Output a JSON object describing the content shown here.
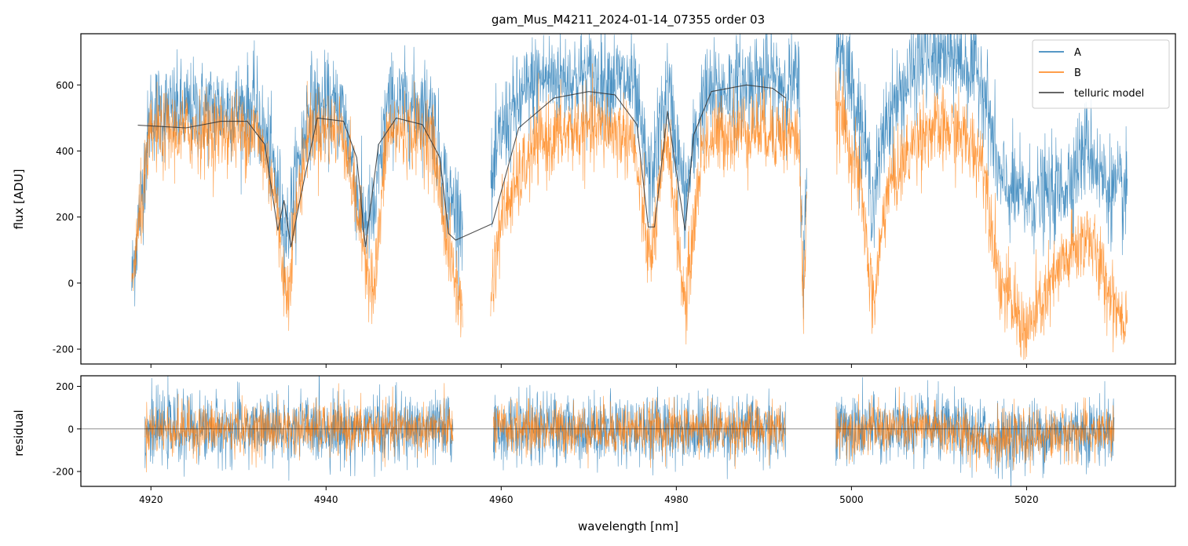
{
  "chart_data": [
    {
      "type": "line",
      "title": "gam_Mus_M4211_2024-01-14_07355  order 03",
      "xlabel": "",
      "ylabel": "flux [ADU]",
      "xlim": [
        4912,
        5037
      ],
      "ylim": [
        -245,
        755
      ],
      "yticks": [
        -200,
        0,
        200,
        400,
        600
      ],
      "xticks": [
        4920,
        4940,
        4960,
        4980,
        5000,
        5020
      ],
      "legend": "top-right",
      "grid": false,
      "segments": [
        [
          4917.8,
          4955.6
        ],
        [
          4958.8,
          4994.4
        ],
        [
          4994.4,
          4994.9
        ],
        [
          4998.2,
          5031.5
        ]
      ],
      "series": [
        {
          "name": "A",
          "color": "#1f77b4",
          "noise": 75,
          "x": [
            4917.8,
            4920,
            4924,
            4928,
            4932,
            4934,
            4935.5,
            4936.5,
            4938,
            4942,
            4944,
            4945.5,
            4947,
            4952,
            4954,
            4956,
            4958,
            4960,
            4964,
            4968,
            4972,
            4975,
            4977,
            4979,
            4981,
            4983,
            4986,
            4990,
            4994,
            4994.5,
            4995.5,
            4999,
            5001,
            5002.5,
            5004,
            5008,
            5012,
            5015,
            5017,
            5020,
            5024,
            5027,
            5029,
            5031
          ],
          "y": [
            0,
            520,
            520,
            530,
            530,
            350,
            150,
            300,
            540,
            520,
            200,
            200,
            540,
            530,
            250,
            200,
            150,
            460,
            620,
            620,
            620,
            600,
            300,
            600,
            250,
            560,
            590,
            620,
            600,
            0,
            800,
            700,
            500,
            250,
            500,
            680,
            680,
            620,
            300,
            250,
            280,
            420,
            300,
            260
          ]
        },
        {
          "name": "B",
          "color": "#ff7f0e",
          "noise": 60,
          "x": [
            4917.8,
            4920,
            4924,
            4928,
            4932,
            4934,
            4935.5,
            4936.5,
            4938,
            4942,
            4944,
            4945.5,
            4947,
            4952,
            4954,
            4956,
            4958,
            4960,
            4964,
            4968,
            4972,
            4975,
            4977,
            4979,
            4981,
            4983,
            4986,
            4990,
            4994,
            4994.5,
            4995.5,
            4999,
            5001,
            5002.5,
            5004,
            5008,
            5012,
            5015,
            5017,
            5020,
            5024,
            5027,
            5029,
            5031
          ],
          "y": [
            0,
            450,
            460,
            460,
            460,
            300,
            -50,
            200,
            470,
            460,
            150,
            -30,
            460,
            450,
            100,
            -150,
            -200,
            200,
            420,
            460,
            470,
            440,
            50,
            450,
            -80,
            420,
            460,
            470,
            440,
            -50,
            560,
            500,
            300,
            -80,
            280,
            460,
            460,
            380,
            0,
            -150,
            50,
            150,
            0,
            -100
          ]
        },
        {
          "name": "telluric model",
          "color": "#333333",
          "noise": 0,
          "x": [
            4918.5,
            4924,
            4928,
            4931,
            4933,
            4934.5,
            4935.2,
            4936,
            4937,
            4939,
            4942,
            4943.5,
            4944.5,
            4946,
            4948,
            4951,
            4953,
            4954,
            4954.8,
            4959,
            4962,
            4966,
            4970,
            4973,
            4975.5,
            4976.8,
            4977.5,
            4979,
            4980.2,
            4981,
            4982,
            4984,
            4988,
            4991,
            4992.5
          ],
          "y": [
            478,
            470,
            490,
            490,
            420,
            160,
            250,
            110,
            250,
            500,
            490,
            380,
            110,
            420,
            500,
            480,
            380,
            150,
            130,
            180,
            470,
            560,
            580,
            570,
            480,
            170,
            170,
            520,
            300,
            160,
            450,
            580,
            600,
            590,
            560
          ]
        }
      ]
    },
    {
      "type": "line",
      "title": "",
      "xlabel": "wavelength [nm]",
      "ylabel": "residual",
      "xlim": [
        4912,
        5037
      ],
      "ylim": [
        -270,
        250
      ],
      "yticks": [
        -200,
        0,
        200
      ],
      "xticks": [
        4920,
        4940,
        4960,
        4980,
        5000,
        5020
      ],
      "xtick_labels": [
        "4920",
        "4940",
        "4960",
        "4980",
        "5000",
        "5020"
      ],
      "reference_line": 0,
      "grid": false,
      "segments": [
        [
          4919.3,
          4954.5
        ],
        [
          4959.1,
          4992.5
        ],
        [
          4998.2,
          5030.0
        ]
      ],
      "series": [
        {
          "name": "A",
          "color": "#1f77b4",
          "noise": 80,
          "x": [
            4919.3,
            4930,
            4954.5,
            4959.1,
            4975,
            4992.5,
            4998.2,
            5010,
            5017,
            5022,
            5030
          ],
          "y": [
            0,
            0,
            0,
            0,
            0,
            0,
            0,
            0,
            -40,
            -20,
            0
          ]
        },
        {
          "name": "B",
          "color": "#ff7f0e",
          "noise": 60,
          "x": [
            4919.3,
            4930,
            4954.5,
            4959.1,
            4975,
            4992.5,
            4998.2,
            5010,
            5017,
            5022,
            5030
          ],
          "y": [
            0,
            0,
            0,
            0,
            0,
            0,
            0,
            0,
            -60,
            -30,
            -10
          ]
        }
      ]
    }
  ]
}
